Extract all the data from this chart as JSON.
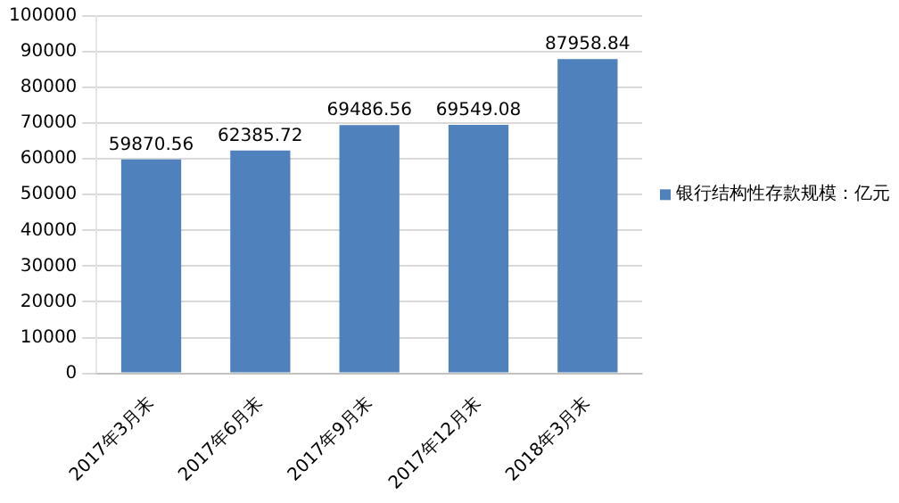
{
  "chart_data": {
    "type": "bar",
    "categories": [
      "2017年3月末",
      "2017年6月末",
      "2017年9月末",
      "2017年12月末",
      "2018年3月末"
    ],
    "series": [
      {
        "name": "银行结构性存款规模：亿元",
        "color": "#4f81bd",
        "values": [
          59870.56,
          62385.72,
          69486.56,
          69549.08,
          87958.84
        ]
      }
    ],
    "ylim": [
      0,
      100000
    ],
    "yticks": [
      0,
      10000,
      20000,
      30000,
      40000,
      50000,
      60000,
      70000,
      80000,
      90000,
      100000
    ],
    "grid": "y",
    "legend": "right",
    "data_labels": true
  }
}
